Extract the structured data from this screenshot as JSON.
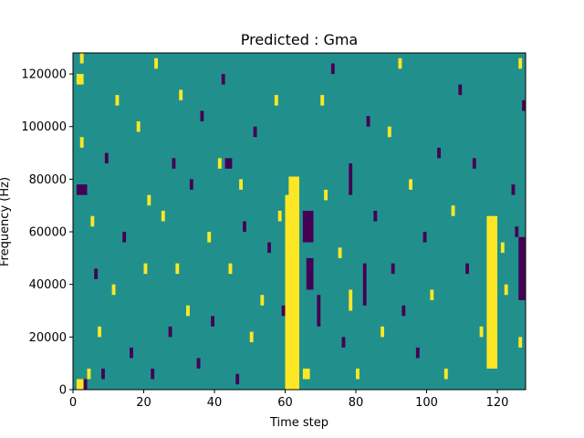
{
  "chart_data": {
    "type": "heatmap",
    "title": "Predicted : Gma",
    "xlabel": "Time step",
    "ylabel": "Frequency (Hz)",
    "xlim": [
      0,
      128
    ],
    "ylim": [
      0,
      128000
    ],
    "x_ticks": [
      {
        "value": 0,
        "label": "0"
      },
      {
        "value": 20,
        "label": "20"
      },
      {
        "value": 40,
        "label": "40"
      },
      {
        "value": 60,
        "label": "60"
      },
      {
        "value": 80,
        "label": "80"
      },
      {
        "value": 100,
        "label": "100"
      },
      {
        "value": 120,
        "label": "120"
      }
    ],
    "y_ticks": [
      {
        "value": 0,
        "label": "0"
      },
      {
        "value": 20000,
        "label": "20000"
      },
      {
        "value": 40000,
        "label": "40000"
      },
      {
        "value": 60000,
        "label": "60000"
      },
      {
        "value": 80000,
        "label": "80000"
      },
      {
        "value": 100000,
        "label": "100000"
      },
      {
        "value": 120000,
        "label": "120000"
      }
    ],
    "colors": {
      "background": "#21908d",
      "high": "#fde725",
      "low": "#440154"
    },
    "grid": false,
    "legend": "none",
    "cell_width": 1,
    "cell_height": 4000,
    "cells": [
      {
        "x": 60,
        "y": 0,
        "w": 4,
        "h": 74000,
        "c": "high"
      },
      {
        "x": 61,
        "y": 0,
        "w": 3,
        "h": 81000,
        "c": "high"
      },
      {
        "x": 117,
        "y": 8000,
        "w": 3,
        "h": 58000,
        "c": "high"
      },
      {
        "x": 1,
        "y": 0,
        "w": 2,
        "h": 4000,
        "c": "high"
      },
      {
        "x": 3,
        "y": 0,
        "w": 1,
        "h": 4000,
        "c": "low"
      },
      {
        "x": 1,
        "y": 116000,
        "w": 2,
        "h": 4000,
        "c": "high"
      },
      {
        "x": 1,
        "y": 74000,
        "w": 3,
        "h": 4000,
        "c": "low"
      },
      {
        "x": 2,
        "y": 124000,
        "w": 1,
        "h": 4000,
        "c": "high"
      },
      {
        "x": 4,
        "y": 4000,
        "w": 1,
        "h": 4000,
        "c": "high"
      },
      {
        "x": 2,
        "y": 92000,
        "w": 1,
        "h": 4000,
        "c": "high"
      },
      {
        "x": 5,
        "y": 62000,
        "w": 1,
        "h": 4000,
        "c": "high"
      },
      {
        "x": 6,
        "y": 42000,
        "w": 1,
        "h": 4000,
        "c": "low"
      },
      {
        "x": 7,
        "y": 20000,
        "w": 1,
        "h": 4000,
        "c": "high"
      },
      {
        "x": 8,
        "y": 4000,
        "w": 1,
        "h": 4000,
        "c": "low"
      },
      {
        "x": 9,
        "y": 86000,
        "w": 1,
        "h": 4000,
        "c": "low"
      },
      {
        "x": 11,
        "y": 36000,
        "w": 1,
        "h": 4000,
        "c": "high"
      },
      {
        "x": 12,
        "y": 108000,
        "w": 1,
        "h": 4000,
        "c": "high"
      },
      {
        "x": 14,
        "y": 56000,
        "w": 1,
        "h": 4000,
        "c": "low"
      },
      {
        "x": 16,
        "y": 12000,
        "w": 1,
        "h": 4000,
        "c": "low"
      },
      {
        "x": 18,
        "y": 98000,
        "w": 1,
        "h": 4000,
        "c": "high"
      },
      {
        "x": 20,
        "y": 44000,
        "w": 1,
        "h": 4000,
        "c": "high"
      },
      {
        "x": 21,
        "y": 70000,
        "w": 1,
        "h": 4000,
        "c": "high"
      },
      {
        "x": 22,
        "y": 4000,
        "w": 1,
        "h": 4000,
        "c": "low"
      },
      {
        "x": 23,
        "y": 122000,
        "w": 1,
        "h": 4000,
        "c": "high"
      },
      {
        "x": 25,
        "y": 64000,
        "w": 1,
        "h": 4000,
        "c": "high"
      },
      {
        "x": 27,
        "y": 20000,
        "w": 1,
        "h": 4000,
        "c": "low"
      },
      {
        "x": 28,
        "y": 84000,
        "w": 1,
        "h": 4000,
        "c": "low"
      },
      {
        "x": 29,
        "y": 44000,
        "w": 1,
        "h": 4000,
        "c": "high"
      },
      {
        "x": 30,
        "y": 110000,
        "w": 1,
        "h": 4000,
        "c": "high"
      },
      {
        "x": 32,
        "y": 28000,
        "w": 1,
        "h": 4000,
        "c": "high"
      },
      {
        "x": 33,
        "y": 76000,
        "w": 1,
        "h": 4000,
        "c": "low"
      },
      {
        "x": 35,
        "y": 8000,
        "w": 1,
        "h": 4000,
        "c": "low"
      },
      {
        "x": 36,
        "y": 102000,
        "w": 1,
        "h": 4000,
        "c": "low"
      },
      {
        "x": 38,
        "y": 56000,
        "w": 1,
        "h": 4000,
        "c": "high"
      },
      {
        "x": 39,
        "y": 24000,
        "w": 1,
        "h": 4000,
        "c": "low"
      },
      {
        "x": 41,
        "y": 84000,
        "w": 1,
        "h": 4000,
        "c": "high"
      },
      {
        "x": 42,
        "y": 116000,
        "w": 1,
        "h": 4000,
        "c": "low"
      },
      {
        "x": 43,
        "y": 84000,
        "w": 2,
        "h": 4000,
        "c": "low"
      },
      {
        "x": 44,
        "y": 44000,
        "w": 1,
        "h": 4000,
        "c": "high"
      },
      {
        "x": 46,
        "y": 2000,
        "w": 1,
        "h": 4000,
        "c": "low"
      },
      {
        "x": 47,
        "y": 76000,
        "w": 1,
        "h": 4000,
        "c": "high"
      },
      {
        "x": 48,
        "y": 60000,
        "w": 1,
        "h": 4000,
        "c": "low"
      },
      {
        "x": 50,
        "y": 18000,
        "w": 1,
        "h": 4000,
        "c": "high"
      },
      {
        "x": 51,
        "y": 96000,
        "w": 1,
        "h": 4000,
        "c": "low"
      },
      {
        "x": 53,
        "y": 32000,
        "w": 1,
        "h": 4000,
        "c": "high"
      },
      {
        "x": 55,
        "y": 52000,
        "w": 1,
        "h": 4000,
        "c": "low"
      },
      {
        "x": 57,
        "y": 108000,
        "w": 1,
        "h": 4000,
        "c": "high"
      },
      {
        "x": 58,
        "y": 64000,
        "w": 1,
        "h": 4000,
        "c": "high"
      },
      {
        "x": 59,
        "y": 28000,
        "w": 1,
        "h": 4000,
        "c": "low"
      },
      {
        "x": 65,
        "y": 4000,
        "w": 2,
        "h": 4000,
        "c": "high"
      },
      {
        "x": 65,
        "y": 56000,
        "w": 3,
        "h": 12000,
        "c": "low"
      },
      {
        "x": 66,
        "y": 38000,
        "w": 2,
        "h": 12000,
        "c": "low"
      },
      {
        "x": 69,
        "y": 24000,
        "w": 1,
        "h": 12000,
        "c": "low"
      },
      {
        "x": 70,
        "y": 108000,
        "w": 1,
        "h": 4000,
        "c": "high"
      },
      {
        "x": 71,
        "y": 72000,
        "w": 1,
        "h": 4000,
        "c": "high"
      },
      {
        "x": 73,
        "y": 120000,
        "w": 1,
        "h": 4000,
        "c": "low"
      },
      {
        "x": 75,
        "y": 50000,
        "w": 1,
        "h": 4000,
        "c": "high"
      },
      {
        "x": 76,
        "y": 16000,
        "w": 1,
        "h": 4000,
        "c": "low"
      },
      {
        "x": 78,
        "y": 74000,
        "w": 1,
        "h": 12000,
        "c": "low"
      },
      {
        "x": 78,
        "y": 30000,
        "w": 1,
        "h": 8000,
        "c": "high"
      },
      {
        "x": 80,
        "y": 4000,
        "w": 1,
        "h": 4000,
        "c": "high"
      },
      {
        "x": 82,
        "y": 32000,
        "w": 1,
        "h": 16000,
        "c": "low"
      },
      {
        "x": 83,
        "y": 100000,
        "w": 1,
        "h": 4000,
        "c": "low"
      },
      {
        "x": 85,
        "y": 64000,
        "w": 1,
        "h": 4000,
        "c": "low"
      },
      {
        "x": 87,
        "y": 20000,
        "w": 1,
        "h": 4000,
        "c": "high"
      },
      {
        "x": 89,
        "y": 96000,
        "w": 1,
        "h": 4000,
        "c": "high"
      },
      {
        "x": 90,
        "y": 44000,
        "w": 1,
        "h": 4000,
        "c": "low"
      },
      {
        "x": 92,
        "y": 122000,
        "w": 1,
        "h": 4000,
        "c": "high"
      },
      {
        "x": 93,
        "y": 28000,
        "w": 1,
        "h": 4000,
        "c": "low"
      },
      {
        "x": 95,
        "y": 76000,
        "w": 1,
        "h": 4000,
        "c": "high"
      },
      {
        "x": 97,
        "y": 12000,
        "w": 1,
        "h": 4000,
        "c": "low"
      },
      {
        "x": 99,
        "y": 56000,
        "w": 1,
        "h": 4000,
        "c": "low"
      },
      {
        "x": 101,
        "y": 34000,
        "w": 1,
        "h": 4000,
        "c": "high"
      },
      {
        "x": 103,
        "y": 88000,
        "w": 1,
        "h": 4000,
        "c": "low"
      },
      {
        "x": 105,
        "y": 4000,
        "w": 1,
        "h": 4000,
        "c": "high"
      },
      {
        "x": 107,
        "y": 66000,
        "w": 1,
        "h": 4000,
        "c": "high"
      },
      {
        "x": 109,
        "y": 112000,
        "w": 1,
        "h": 4000,
        "c": "low"
      },
      {
        "x": 111,
        "y": 44000,
        "w": 1,
        "h": 4000,
        "c": "low"
      },
      {
        "x": 113,
        "y": 84000,
        "w": 1,
        "h": 4000,
        "c": "low"
      },
      {
        "x": 115,
        "y": 20000,
        "w": 1,
        "h": 4000,
        "c": "high"
      },
      {
        "x": 121,
        "y": 52000,
        "w": 1,
        "h": 4000,
        "c": "high"
      },
      {
        "x": 122,
        "y": 36000,
        "w": 1,
        "h": 4000,
        "c": "high"
      },
      {
        "x": 124,
        "y": 74000,
        "w": 1,
        "h": 4000,
        "c": "low"
      },
      {
        "x": 125,
        "y": 58000,
        "w": 1,
        "h": 4000,
        "c": "low"
      },
      {
        "x": 126,
        "y": 34000,
        "w": 2,
        "h": 24000,
        "c": "low"
      },
      {
        "x": 126,
        "y": 16000,
        "w": 1,
        "h": 4000,
        "c": "high"
      },
      {
        "x": 127,
        "y": 106000,
        "w": 1,
        "h": 4000,
        "c": "low"
      },
      {
        "x": 126,
        "y": 122000,
        "w": 1,
        "h": 4000,
        "c": "high"
      }
    ]
  }
}
